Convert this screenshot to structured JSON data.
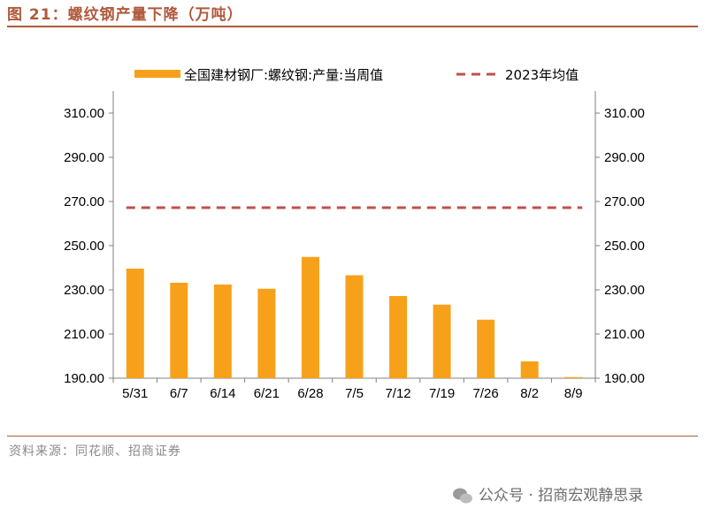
{
  "figure": {
    "title": "图 21：螺纹钢产量下降（万吨）",
    "source": "资料来源：同花顺、招商证券",
    "watermark": "公众号 · 招商宏观静思录"
  },
  "colors": {
    "bar": "#f7a11a",
    "avg_line": "#c0504d",
    "accent": "#b0593c"
  },
  "chart_data": {
    "type": "bar",
    "categories": [
      "5/31",
      "6/7",
      "6/14",
      "6/21",
      "6/28",
      "7/5",
      "7/12",
      "7/19",
      "7/26",
      "8/2",
      "8/9"
    ],
    "series": [
      {
        "name": "全国建材钢厂:螺纹钢:产量:当周值",
        "values": [
          239.6,
          233.2,
          232.4,
          230.5,
          244.9,
          236.6,
          227.2,
          223.3,
          216.5,
          197.6,
          190.5
        ]
      }
    ],
    "reference_line": {
      "name": "2023年均值",
      "value": 267.2,
      "style": "dashed"
    },
    "ylim": [
      190,
      310
    ],
    "yticks": [
      "190.00",
      "210.00",
      "230.00",
      "250.00",
      "270.00",
      "290.00",
      "310.00"
    ],
    "ytick_values": [
      190,
      210,
      230,
      250,
      270,
      290,
      310
    ],
    "right_axis_mirror": true,
    "legend": "top",
    "grid": false
  }
}
